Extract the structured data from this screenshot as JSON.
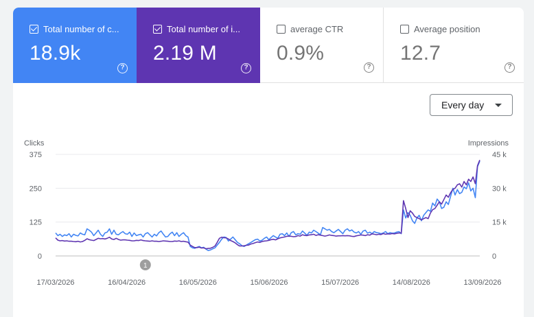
{
  "metrics": [
    {
      "label": "Total number of c...",
      "value": "18.9k",
      "checked": true,
      "color": "#4285f4"
    },
    {
      "label": "Total number of i...",
      "value": "2.19 M",
      "checked": true,
      "color": "#5e35b1"
    },
    {
      "label": "average CTR",
      "value": "0.9%",
      "checked": false
    },
    {
      "label": "Average position",
      "value": "12.7",
      "checked": false
    }
  ],
  "help_glyph": "?",
  "granularity": {
    "selected": "Every day"
  },
  "chart_data": {
    "type": "line",
    "y_left_label": "Clicks",
    "y_right_label": "Impressions",
    "y_left_ticks": [
      "375",
      "250",
      "125",
      "0"
    ],
    "y_right_ticks": [
      "45 k",
      "30 k",
      "15 k",
      "0"
    ],
    "ylim_left": [
      0,
      375
    ],
    "ylim_right": [
      0,
      45000
    ],
    "x_tick_labels": [
      "17/03/2026",
      "16/04/2026",
      "16/05/2026",
      "15/06/2026",
      "15/07/2026",
      "14/08/2026",
      "13/09/2026"
    ],
    "annotation": {
      "label": "1",
      "date_index": 40
    },
    "grid": true,
    "series": [
      {
        "axis": "left",
        "color": "#4285f4",
        "values": [
          85,
          75,
          80,
          72,
          78,
          75,
          82,
          70,
          80,
          76,
          74,
          85,
          80,
          78,
          100,
          95,
          88,
          75,
          85,
          95,
          80,
          72,
          85,
          88,
          100,
          80,
          95,
          80,
          78,
          85,
          90,
          82,
          80,
          88,
          72,
          85,
          75,
          78,
          80,
          70,
          82,
          86,
          78,
          70,
          80,
          74,
          86,
          92,
          80,
          70,
          72,
          82,
          88,
          75,
          86,
          72,
          80,
          86,
          75,
          70,
          35,
          30,
          28,
          32,
          35,
          30,
          32,
          25,
          20,
          22,
          26,
          30,
          40,
          50,
          62,
          70,
          68,
          55,
          62,
          70,
          60,
          50,
          45,
          38,
          35,
          40,
          45,
          50,
          55,
          60,
          62,
          55,
          58,
          65,
          70,
          60,
          68,
          75,
          70,
          65,
          80,
          82,
          75,
          85,
          72,
          86,
          90,
          78,
          82,
          80,
          92,
          84,
          76,
          88,
          85,
          95,
          90,
          84,
          78,
          105,
          100,
          95,
          98,
          90,
          86,
          92,
          98,
          90,
          82,
          95,
          100,
          92,
          96,
          88,
          85,
          90,
          80,
          92,
          95,
          84,
          88,
          82,
          90,
          86,
          85,
          82,
          85,
          90,
          82,
          86,
          84,
          85,
          88,
          90,
          82,
          170,
          140,
          160,
          150,
          130,
          120,
          140,
          150,
          130,
          150,
          160,
          170,
          165,
          195,
          185,
          210,
          200,
          175,
          180,
          200,
          190,
          220,
          250,
          225,
          245,
          230,
          235,
          255,
          248,
          270,
          240,
          250,
          215,
          330,
          350
        ]
      },
      {
        "axis": "right",
        "color": "#5e35b1",
        "values": [
          8000,
          7000,
          6700,
          6800,
          6600,
          6700,
          6500,
          6500,
          6400,
          6300,
          6500,
          6200,
          6400,
          6900,
          7600,
          7200,
          7000,
          6800,
          7300,
          7800,
          7600,
          7700,
          7500,
          7800,
          8300,
          7500,
          7300,
          7800,
          7300,
          7000,
          7100,
          7100,
          7000,
          6900,
          6700,
          6700,
          6900,
          6800,
          7100,
          6800,
          6700,
          6600,
          6500,
          6700,
          6500,
          6500,
          6400,
          6500,
          6700,
          6600,
          6500,
          6400,
          6400,
          6600,
          6500,
          6700,
          6400,
          6500,
          6300,
          6100,
          4800,
          4200,
          3700,
          3700,
          3900,
          3500,
          3600,
          3200,
          3300,
          3400,
          3800,
          4400,
          6000,
          7800,
          8300,
          8100,
          8000,
          7500,
          6800,
          6400,
          5800,
          5000,
          4400,
          4400,
          4500,
          4700,
          4800,
          5300,
          5500,
          5900,
          6200,
          6000,
          6400,
          6600,
          6700,
          6900,
          7200,
          7400,
          7100,
          7600,
          8000,
          8200,
          8400,
          8700,
          8800,
          8700,
          8500,
          8600,
          9000,
          8800,
          9400,
          9100,
          9000,
          9300,
          9400,
          9600,
          9100,
          9400,
          9200,
          9000,
          8800,
          9000,
          9300,
          9100,
          9000,
          8800,
          8900,
          8900,
          9000,
          8900,
          9000,
          8900,
          8700,
          8600,
          8900,
          9100,
          9300,
          9200,
          9000,
          9400,
          9200,
          9800,
          9600,
          9400,
          9600,
          9500,
          9900,
          9600,
          9800,
          9700,
          9900,
          9800,
          10000,
          10200,
          10100,
          24500,
          21000,
          17000,
          20000,
          19000,
          17500,
          17000,
          16500,
          16000,
          16500,
          17000,
          16500,
          19000,
          20500,
          21000,
          22500,
          24000,
          23000,
          25000,
          27000,
          26000,
          28000,
          29500,
          30000,
          31500,
          32000,
          30500,
          33000,
          31500,
          34000,
          33000,
          35000,
          32000,
          40000,
          42500
        ]
      }
    ]
  }
}
